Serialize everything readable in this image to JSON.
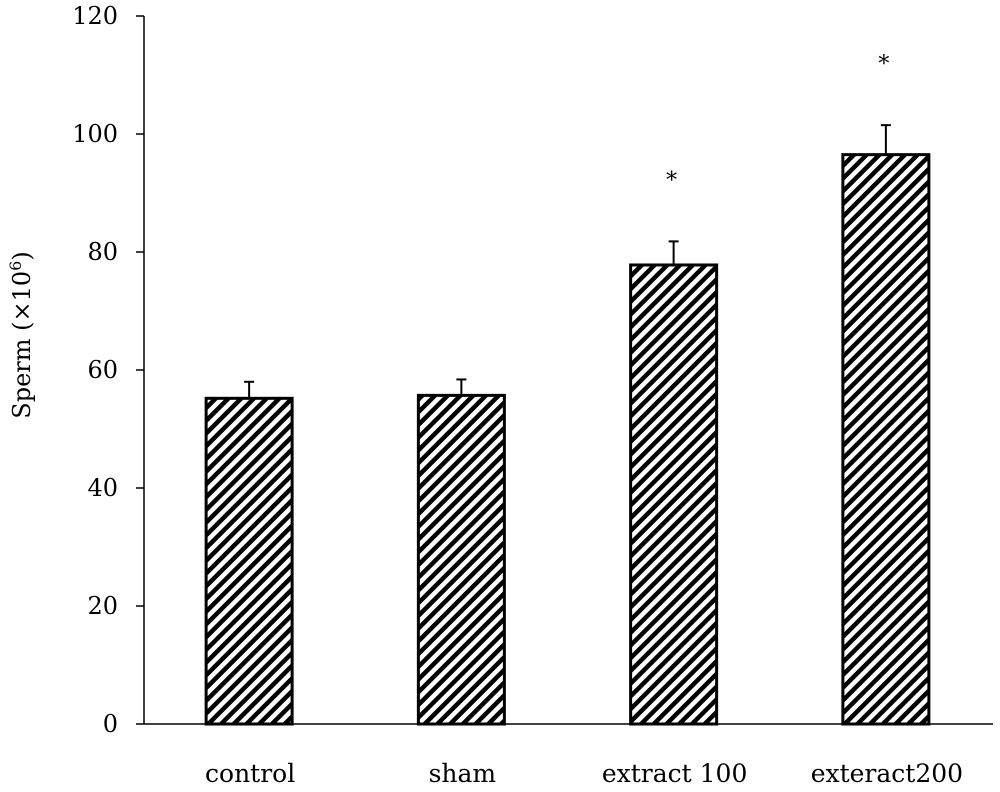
{
  "chart_data": {
    "type": "bar",
    "categories": [
      "control",
      "sham",
      "extract 100",
      "exteract200"
    ],
    "values": [
      55.2,
      55.7,
      77.8,
      96.5
    ],
    "errors": [
      2.8,
      2.7,
      4.0,
      5.0
    ],
    "significance": [
      "",
      "",
      "*",
      "*"
    ],
    "title": "",
    "xlabel": "",
    "ylabel": "Sperm (×10",
    "ylabel_superscript": "6",
    "ylabel_suffix": ")",
    "ylim": [
      0,
      120
    ],
    "yticks": [
      0,
      20,
      40,
      60,
      80,
      100,
      120
    ],
    "grid": false,
    "legend": "none",
    "bar_pattern": "diagonal-hatch",
    "colors": {
      "bar_stroke": "#000000",
      "hatch": "#000000",
      "background": "#ffffff"
    }
  }
}
